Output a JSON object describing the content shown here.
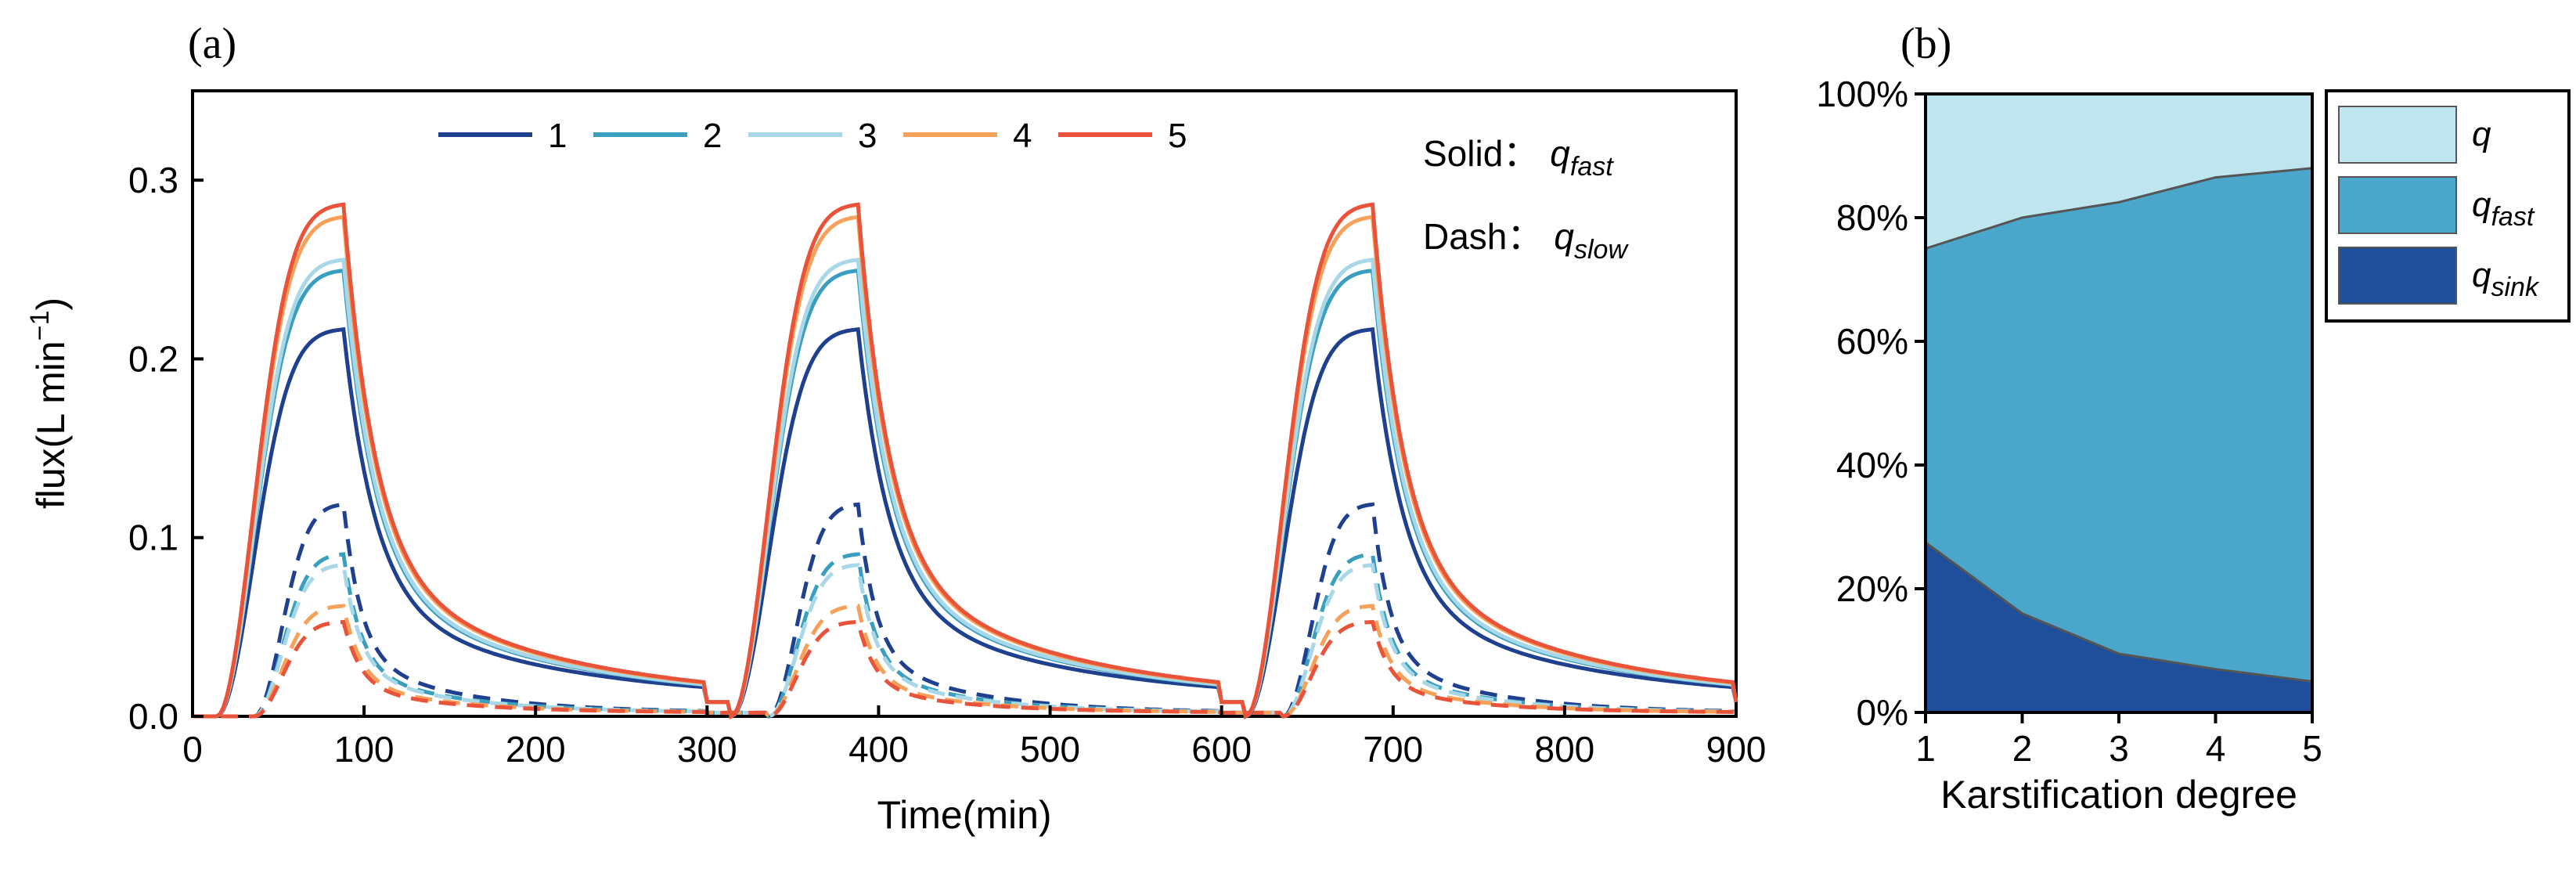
{
  "chart_data": [
    {
      "type": "line",
      "panel_label": "(a)",
      "xlabel": "Time(min)",
      "ylabel_main": "flux(L min",
      "ylabel_sup": "−1",
      "ylabel_close": ")",
      "xlim": [
        0,
        900
      ],
      "ylim": [
        0,
        0.35
      ],
      "xticks": [
        "0",
        "100",
        "200",
        "300",
        "400",
        "500",
        "600",
        "700",
        "800",
        "900"
      ],
      "yticks": [
        "0.0",
        "0.1",
        "0.2",
        "0.3"
      ],
      "xtick_values": [
        0,
        100,
        200,
        300,
        400,
        500,
        600,
        700,
        800,
        900
      ],
      "ytick_values": [
        0,
        0.1,
        0.2,
        0.3
      ],
      "legend": [
        "1",
        "2",
        "3",
        "4",
        "5"
      ],
      "note_solid_prefix": "Solid：",
      "note_solid_q": "q",
      "note_solid_sub": "fast",
      "note_dash_prefix": "Dash：",
      "note_dash_q": "q",
      "note_dash_sub": "slow",
      "pulse_starts": [
        0,
        300,
        600
      ],
      "series": [
        {
          "name": "1",
          "color": "#1f3f8f",
          "q_fast_peak": 0.217,
          "q_slow_peak": 0.119
        },
        {
          "name": "2",
          "color": "#3a9fbf",
          "q_fast_peak": 0.25,
          "q_slow_peak": 0.091
        },
        {
          "name": "3",
          "color": "#a8d8e8",
          "q_fast_peak": 0.256,
          "q_slow_peak": 0.085
        },
        {
          "name": "4",
          "color": "#f5a15a",
          "q_fast_peak": 0.28,
          "q_slow_peak": 0.062
        },
        {
          "name": "5",
          "color": "#e8533a",
          "q_fast_peak": 0.287,
          "q_slow_peak": 0.053
        }
      ]
    },
    {
      "type": "area",
      "panel_label": "(b)",
      "xlabel": "Karstification degree",
      "x": [
        1,
        2,
        3,
        4,
        5
      ],
      "xticks": [
        "1",
        "2",
        "3",
        "4",
        "5"
      ],
      "yticks": [
        "0%",
        "20%",
        "40%",
        "60%",
        "80%",
        "100%"
      ],
      "ylim": [
        0,
        100
      ],
      "series": [
        {
          "name": "q",
          "sub": "",
          "color": "#bfe6ee",
          "top": [
            100,
            100,
            100,
            100,
            100
          ]
        },
        {
          "name": "q",
          "sub": "fast",
          "color": "#4aa6cb",
          "top": [
            75,
            80,
            82.5,
            86.5,
            88
          ]
        },
        {
          "name": "q",
          "sub": "sink",
          "color": "#1f4e9a",
          "top": [
            27.5,
            16,
            9.5,
            7,
            5
          ]
        }
      ]
    }
  ]
}
